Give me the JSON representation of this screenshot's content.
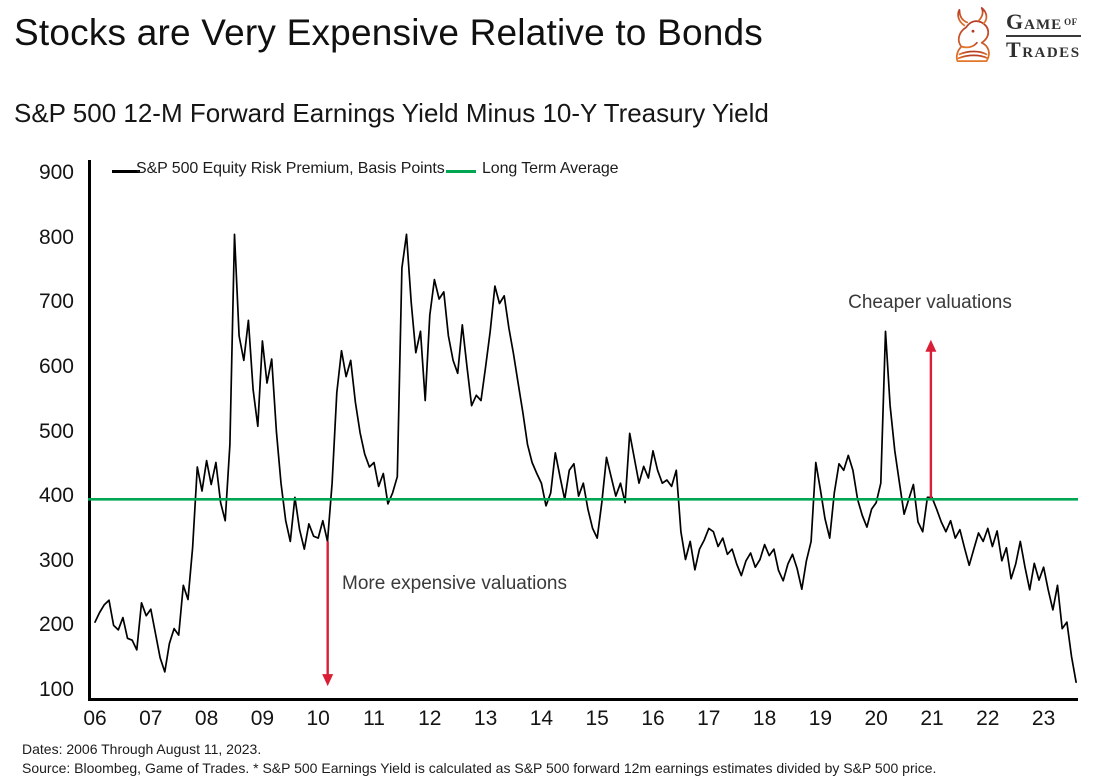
{
  "header": {
    "title": "Stocks are Very Expensive Relative to Bonds",
    "subtitle": "S&P 500 12-M Forward Earnings Yield Minus 10-Y Treasury Yield"
  },
  "logo": {
    "game": "GAME",
    "of": "OF",
    "trades": "TRADES"
  },
  "footer": {
    "line1": "Dates: 2006 Through August 11, 2023.",
    "line2": "Source: Bloombeg, Game of Trades. * S&P 500 Earnings Yield is calculated as S&P 500 forward 12m earnings estimates divided by S&P 500 price."
  },
  "chart_data": {
    "type": "line",
    "title": "S&P 500 12-M Forward Earnings Yield Minus 10-Y Treasury Yield",
    "ylim": [
      100,
      900
    ],
    "y_ticks": [
      900,
      800,
      700,
      600,
      500,
      400,
      300,
      200,
      100
    ],
    "x_tick_years": [
      2006,
      2007,
      2008,
      2009,
      2010,
      2011,
      2012,
      2013,
      2014,
      2015,
      2016,
      2017,
      2018,
      2019,
      2020,
      2021,
      2022,
      2023
    ],
    "x_tick_labels": [
      "06",
      "07",
      "08",
      "09",
      "10",
      "11",
      "12",
      "13",
      "14",
      "15",
      "16",
      "17",
      "18",
      "19",
      "20",
      "21",
      "22",
      "23"
    ],
    "grid": false,
    "legend_position": "top",
    "series": [
      {
        "name": "S&P 500 Equity Risk Premium, Basis Points",
        "color": "#000000",
        "start_year": 2006,
        "points_per_year": 12,
        "values": [
          205,
          220,
          232,
          239,
          200,
          193,
          212,
          180,
          177,
          162,
          235,
          215,
          225,
          188,
          150,
          128,
          172,
          195,
          185,
          262,
          240,
          320,
          445,
          408,
          455,
          418,
          452,
          390,
          362,
          480,
          805,
          648,
          610,
          672,
          565,
          508,
          640,
          575,
          612,
          500,
          420,
          362,
          330,
          398,
          348,
          318,
          357,
          338,
          335,
          362,
          330,
          420,
          560,
          625,
          585,
          610,
          545,
          498,
          465,
          445,
          452,
          415,
          435,
          388,
          405,
          430,
          753,
          805,
          700,
          622,
          655,
          548,
          680,
          735,
          705,
          716,
          648,
          610,
          590,
          665,
          600,
          540,
          556,
          548,
          600,
          655,
          725,
          698,
          710,
          660,
          620,
          575,
          530,
          480,
          452,
          435,
          420,
          385,
          405,
          467,
          430,
          395,
          440,
          450,
          400,
          420,
          380,
          350,
          335,
          390,
          460,
          430,
          400,
          420,
          390,
          497,
          458,
          420,
          446,
          428,
          470,
          440,
          420,
          425,
          415,
          440,
          345,
          302,
          330,
          286,
          318,
          332,
          350,
          345,
          322,
          335,
          310,
          318,
          295,
          277,
          300,
          312,
          290,
          302,
          325,
          308,
          318,
          285,
          269,
          295,
          310,
          288,
          256,
          300,
          330,
          452,
          410,
          365,
          335,
          405,
          450,
          440,
          463,
          440,
          395,
          370,
          352,
          380,
          390,
          420,
          655,
          540,
          470,
          420,
          372,
          395,
          418,
          360,
          345,
          398,
          398,
          380,
          360,
          345,
          362,
          335,
          348,
          320,
          293,
          318,
          343,
          330,
          350,
          322,
          346,
          300,
          320,
          272,
          295,
          330,
          290,
          255,
          296,
          270,
          290,
          255,
          224,
          262,
          195,
          205,
          152,
          112
        ]
      }
    ],
    "reference_line": {
      "name": "Long Term Average",
      "color": "#00A651",
      "value": 395
    },
    "annotations": [
      {
        "label": "More expensive valuations",
        "arrow": {
          "direction": "down",
          "x_year": 2010.17,
          "from_value": 330,
          "to_value": 106,
          "color": "#D91E36"
        }
      },
      {
        "label": "Cheaper valuations",
        "arrow": {
          "direction": "up",
          "x_year": 2020.98,
          "from_value": 397,
          "to_value": 642,
          "color": "#D91E36"
        }
      }
    ]
  }
}
